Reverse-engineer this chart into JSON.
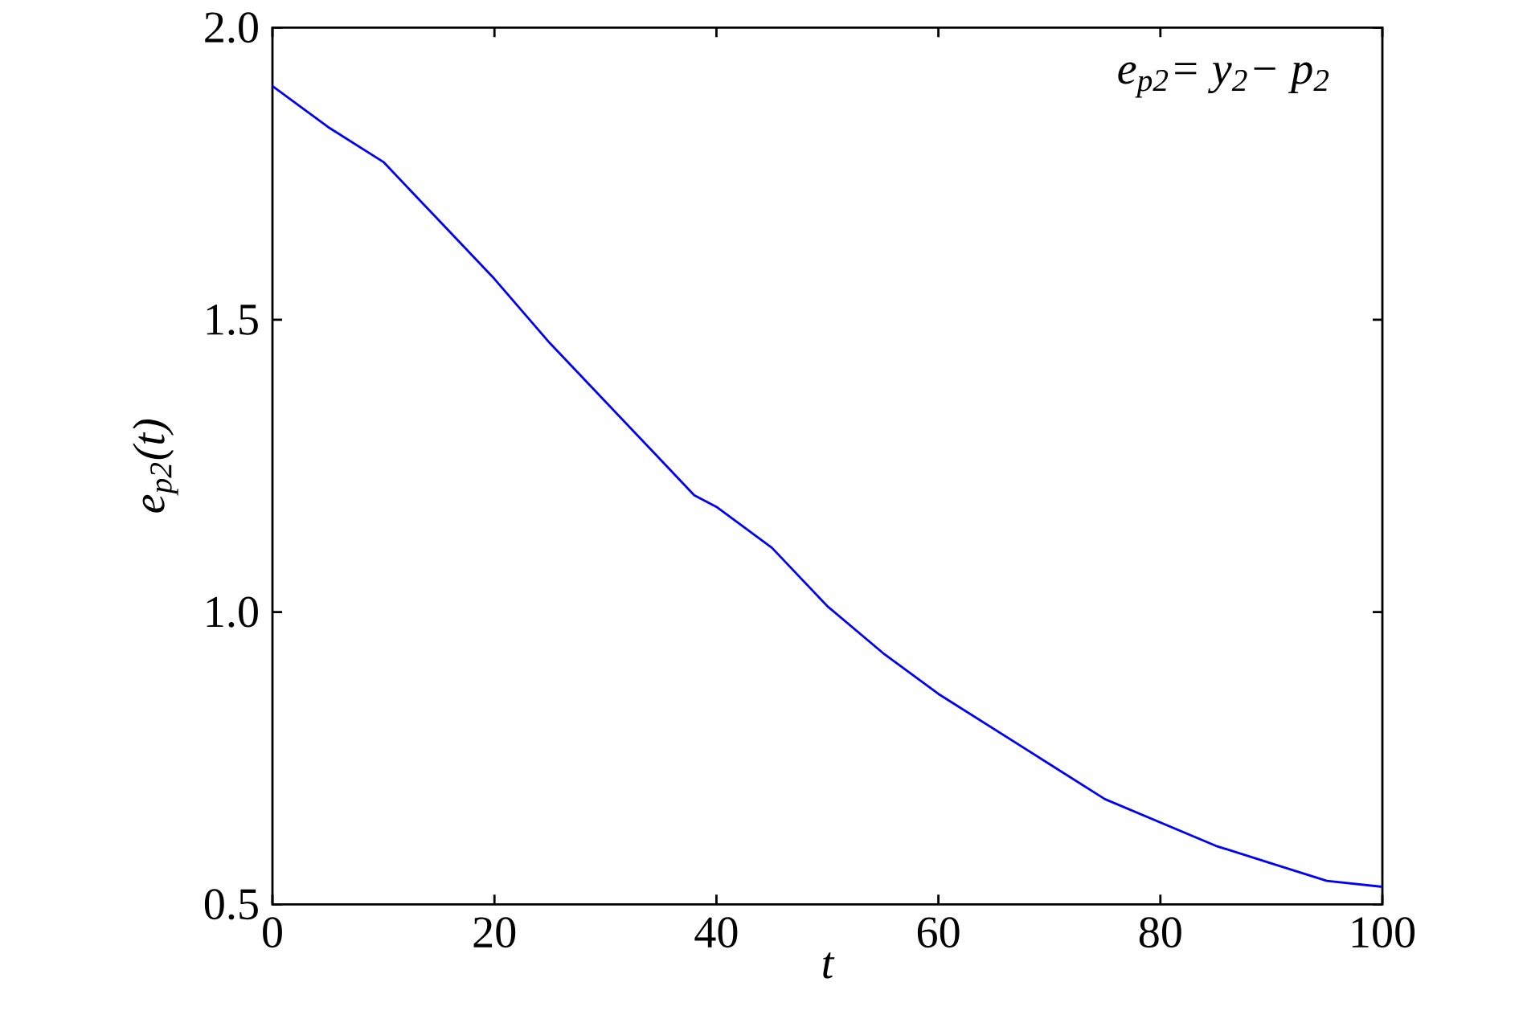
{
  "chart_data": {
    "type": "line",
    "xlabel": "t",
    "ylabel": "e$_{p2}$(t)",
    "annotations": [
      "e$_{p2}$= y$_{2}$− p$_{2}$"
    ],
    "x": [
      0,
      5,
      10,
      15,
      20,
      25,
      30,
      35,
      38,
      40,
      45,
      50,
      55,
      60,
      65,
      70,
      75,
      80,
      85,
      90,
      95,
      100
    ],
    "series": [
      {
        "color": "#0000ff",
        "values": [
          1.9,
          1.83,
          1.77,
          1.67,
          1.57,
          1.46,
          1.36,
          1.26,
          1.2,
          1.18,
          1.11,
          1.01,
          0.93,
          0.86,
          0.8,
          0.74,
          0.68,
          0.64,
          0.6,
          0.57,
          0.54,
          0.53
        ]
      }
    ],
    "xlim": [
      0,
      100
    ],
    "ylim": [
      0.5,
      2.0
    ],
    "xticks": [
      0,
      20,
      40,
      60,
      80,
      100
    ],
    "yticks": [
      {
        "value": 0.5,
        "label": "0.5"
      },
      {
        "value": 1.0,
        "label": "1.0"
      },
      {
        "value": 1.5,
        "label": "1.5"
      },
      {
        "value": 2.0,
        "label": "2.0"
      }
    ],
    "grid": false,
    "marker": "none",
    "line_style": "solid"
  }
}
